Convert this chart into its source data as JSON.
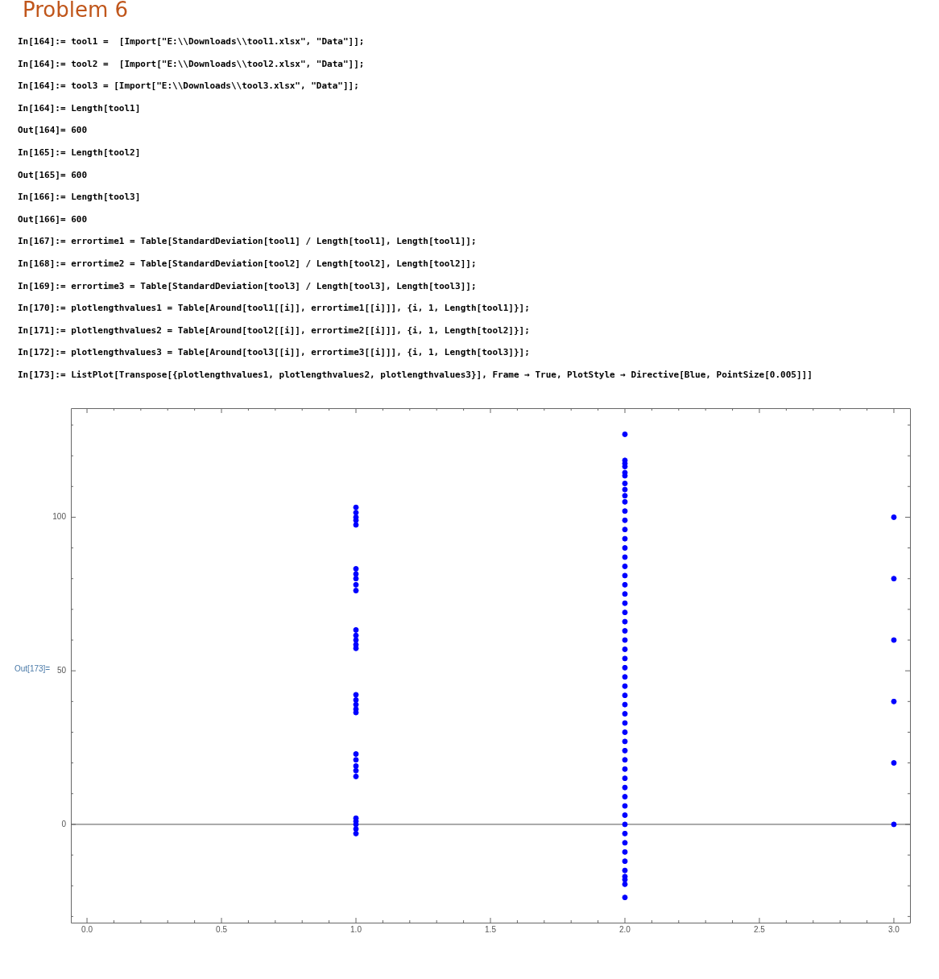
{
  "chart_data": {
    "type": "scatter",
    "title": "Problem 6",
    "annotations": [
      "In[164]:= tool1 =  [Import[\"E:\\\\Downloads\\\\tool1.xlsx\", \"Data\"]];",
      "In[164]:= tool2 =  [Import[\"E:\\\\Downloads\\\\tool2.xlsx\", \"Data\"]];",
      "In[164]:= tool3 = [Import[\"E:\\\\Downloads\\\\tool3.xlsx\", \"Data\"]];",
      "In[164]:= Length[tool1]",
      "Out[164]= 600",
      "In[165]:= Length[tool2]",
      "Out[165]= 600",
      "In[166]:= Length[tool3]",
      "Out[166]= 600",
      "In[167]:= errortime1 = Table[StandardDeviation[tool1] / Length[tool1], Length[tool1]];",
      "In[168]:= errortime2 = Table[StandardDeviation[tool2] / Length[tool2], Length[tool2]];",
      "In[169]:= errortime3 = Table[StandardDeviation[tool3] / Length[tool3], Length[tool3]];",
      "In[170]:= plotlengthvalues1 = Table[Around[tool1[[i]], errortime1[[i]]], {i, 1, Length[tool1]}];",
      "In[171]:= plotlengthvalues2 = Table[Around[tool2[[i]], errortime2[[i]]], {i, 1, Length[tool2]}];",
      "In[172]:= plotlengthvalues3 = Table[Around[tool3[[i]], errortime3[[i]]], {i, 1, Length[tool3]}];",
      "In[173]:= ListPlot[Transpose[{plotlengthvalues1, plotlengthvalues2, plotlengthvalues3}], Frame → True, PlotStyle → Directive[Blue, PointSize[0.005]]]",
      "Out[173]="
    ],
    "xlim": [
      -0.06,
      3.06
    ],
    "ylim": [
      -32,
      135.5
    ],
    "xticks": [
      {
        "value": 0,
        "label": "0.0"
      },
      {
        "value": 0.1,
        "label": null
      },
      {
        "value": 0.2,
        "label": null
      },
      {
        "value": 0.3,
        "label": null
      },
      {
        "value": 0.4,
        "label": null
      },
      0.5,
      {
        "value": 0.6,
        "label": null
      },
      {
        "value": 0.7,
        "label": null
      },
      {
        "value": 0.8,
        "label": null
      },
      {
        "value": 0.9,
        "label": null
      },
      {
        "value": 1,
        "label": "1.0"
      },
      {
        "value": 1.1,
        "label": null
      },
      {
        "value": 1.2,
        "label": null
      },
      {
        "value": 1.3,
        "label": null
      },
      {
        "value": 1.4,
        "label": null
      },
      1.5,
      {
        "value": 1.6,
        "label": null
      },
      {
        "value": 1.7,
        "label": null
      },
      {
        "value": 1.8,
        "label": null
      },
      {
        "value": 1.9,
        "label": null
      },
      {
        "value": 2,
        "label": "2.0"
      },
      {
        "value": 2.1,
        "label": null
      },
      {
        "value": 2.2,
        "label": null
      },
      {
        "value": 2.3,
        "label": null
      },
      {
        "value": 2.4,
        "label": null
      },
      2.5,
      {
        "value": 2.6,
        "label": null
      },
      {
        "value": 2.7,
        "label": null
      },
      {
        "value": 2.8,
        "label": null
      },
      {
        "value": 2.9,
        "label": null
      },
      {
        "value": 3,
        "label": "3.0"
      }
    ],
    "yticks": [
      {
        "value": -30,
        "label": null
      },
      {
        "value": -20,
        "label": null
      },
      {
        "value": -10,
        "label": null
      },
      0,
      {
        "value": 10,
        "label": null
      },
      {
        "value": 20,
        "label": null
      },
      {
        "value": 30,
        "label": null
      },
      {
        "value": 40,
        "label": null
      },
      50,
      {
        "value": 60,
        "label": null
      },
      {
        "value": 70,
        "label": null
      },
      {
        "value": 80,
        "label": null
      },
      {
        "value": 90,
        "label": null
      },
      100,
      {
        "value": 110,
        "label": null
      },
      {
        "value": 120,
        "label": null
      },
      {
        "value": 130,
        "label": null
      }
    ],
    "ref_lines": [
      {
        "axis": "y",
        "value": 0,
        "color": "#555555"
      }
    ],
    "grid": false,
    "legend": false,
    "marker": "circle",
    "series": [
      {
        "color": "#0000ff",
        "x": [
          1,
          1,
          1,
          1,
          1,
          1,
          1,
          1,
          1,
          1,
          1,
          1,
          1,
          1,
          1,
          1,
          1,
          1,
          1,
          1,
          1,
          1,
          1,
          1,
          1,
          1,
          1,
          1,
          1,
          1
        ],
        "values": [
          103.2,
          101.5,
          100,
          99,
          97.5,
          83.2,
          81.5,
          80,
          78,
          76.1,
          63.3,
          61.5,
          60,
          58.5,
          57.3,
          42.2,
          40.5,
          39,
          37.5,
          36.4,
          22.9,
          21,
          19,
          17.5,
          15.6,
          2,
          1,
          0,
          -1.5,
          -3
        ]
      },
      {
        "color": "#0000ff",
        "x": [
          2,
          2,
          2,
          2,
          2,
          2,
          2,
          2,
          2,
          2,
          2,
          2,
          2,
          2,
          2,
          2,
          2,
          2,
          2,
          2,
          2,
          2,
          2,
          2,
          2,
          2,
          2,
          2,
          2,
          2,
          2,
          2,
          2,
          2,
          2,
          2,
          2,
          2,
          2,
          2,
          2,
          2,
          2,
          2,
          2,
          2,
          2,
          2,
          2,
          2,
          2,
          2,
          2,
          2
        ],
        "values": [
          127,
          118.5,
          117.5,
          116.5,
          114.5,
          113.5,
          111,
          109,
          107,
          105,
          102,
          99,
          96,
          93,
          90,
          87,
          84,
          81,
          78,
          75,
          72,
          69,
          66,
          63,
          60,
          57,
          54,
          51,
          48,
          45,
          42,
          39,
          36,
          33,
          30,
          27,
          24,
          21,
          18,
          15,
          12,
          9,
          6,
          3,
          0,
          -3,
          -6,
          -9,
          -12,
          -15,
          -17,
          -18,
          -19.5,
          -23.8
        ]
      },
      {
        "color": "#0000ff",
        "x": [
          3,
          3,
          3,
          3,
          3,
          3
        ],
        "values": [
          100,
          80,
          60,
          40,
          20,
          0
        ]
      }
    ]
  }
}
